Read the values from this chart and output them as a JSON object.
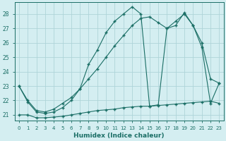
{
  "xlabel": "Humidex (Indice chaleur)",
  "bg_color": "#d4eef1",
  "grid_color": "#aed4d9",
  "line_color": "#1a6e65",
  "xlim": [
    -0.5,
    23.5
  ],
  "ylim": [
    20.6,
    28.8
  ],
  "xticks": [
    0,
    1,
    2,
    3,
    4,
    5,
    6,
    7,
    8,
    9,
    10,
    11,
    12,
    13,
    14,
    15,
    16,
    17,
    18,
    19,
    20,
    21,
    22,
    23
  ],
  "yticks": [
    21,
    22,
    23,
    24,
    25,
    26,
    27,
    28
  ],
  "line1_x": [
    0,
    1,
    2,
    3,
    4,
    5,
    6,
    7,
    8,
    9,
    10,
    11,
    12,
    13,
    14,
    15,
    16,
    17,
    18,
    19,
    20,
    21,
    22,
    23
  ],
  "line1_y": [
    21.0,
    21.0,
    20.8,
    20.8,
    20.85,
    20.9,
    21.0,
    21.1,
    21.2,
    21.3,
    21.35,
    21.4,
    21.5,
    21.55,
    21.6,
    21.6,
    21.65,
    21.7,
    21.75,
    21.8,
    21.85,
    21.9,
    21.95,
    21.8
  ],
  "line2_x": [
    0,
    1,
    2,
    3,
    4,
    5,
    6,
    7,
    8,
    9,
    10,
    11,
    12,
    13,
    14,
    15,
    16,
    17,
    18,
    19,
    20,
    21,
    22,
    23
  ],
  "line2_y": [
    23.0,
    22.0,
    21.3,
    21.2,
    21.4,
    21.8,
    22.2,
    22.8,
    23.5,
    24.2,
    25.0,
    25.8,
    26.5,
    27.2,
    27.7,
    27.8,
    27.4,
    27.0,
    27.5,
    28.0,
    27.2,
    26.0,
    23.5,
    23.2
  ],
  "line3_x": [
    0,
    1,
    2,
    3,
    4,
    5,
    6,
    7,
    8,
    9,
    10,
    11,
    12,
    13,
    14,
    15,
    16,
    17,
    18,
    19,
    20,
    21,
    22,
    23
  ],
  "line3_y": [
    23.0,
    21.9,
    21.2,
    21.1,
    21.2,
    21.5,
    22.0,
    22.8,
    24.5,
    25.5,
    26.7,
    27.5,
    28.0,
    28.5,
    28.0,
    21.6,
    21.7,
    27.0,
    27.2,
    28.1,
    27.2,
    25.7,
    21.8,
    23.2
  ]
}
